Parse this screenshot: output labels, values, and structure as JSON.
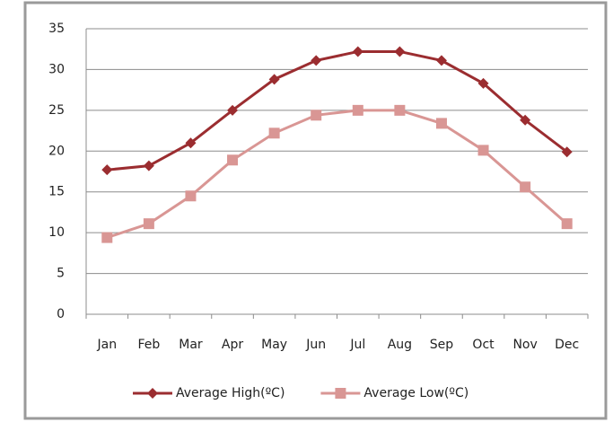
{
  "chart_data": {
    "type": "line",
    "categories": [
      "Jan",
      "Feb",
      "Mar",
      "Apr",
      "May",
      "Jun",
      "Jul",
      "Aug",
      "Sep",
      "Oct",
      "Nov",
      "Dec"
    ],
    "series": [
      {
        "name": "Average High(ºC)",
        "color": "#9b2d30",
        "marker": "diamond",
        "values": [
          17.7,
          18.2,
          21,
          25,
          28.8,
          31.1,
          32.2,
          32.2,
          31.1,
          28.3,
          23.8,
          19.9
        ]
      },
      {
        "name": "Average Low(ºC)",
        "color": "#d99694",
        "marker": "square",
        "values": [
          9.4,
          11.1,
          14.5,
          18.9,
          22.2,
          24.4,
          25,
          25,
          23.4,
          20.1,
          15.6,
          11.1
        ]
      }
    ],
    "ylim": [
      0,
      35
    ],
    "yticks": [
      0,
      5,
      10,
      15,
      20,
      25,
      30,
      35
    ],
    "grid": true,
    "legend": "bottom"
  }
}
